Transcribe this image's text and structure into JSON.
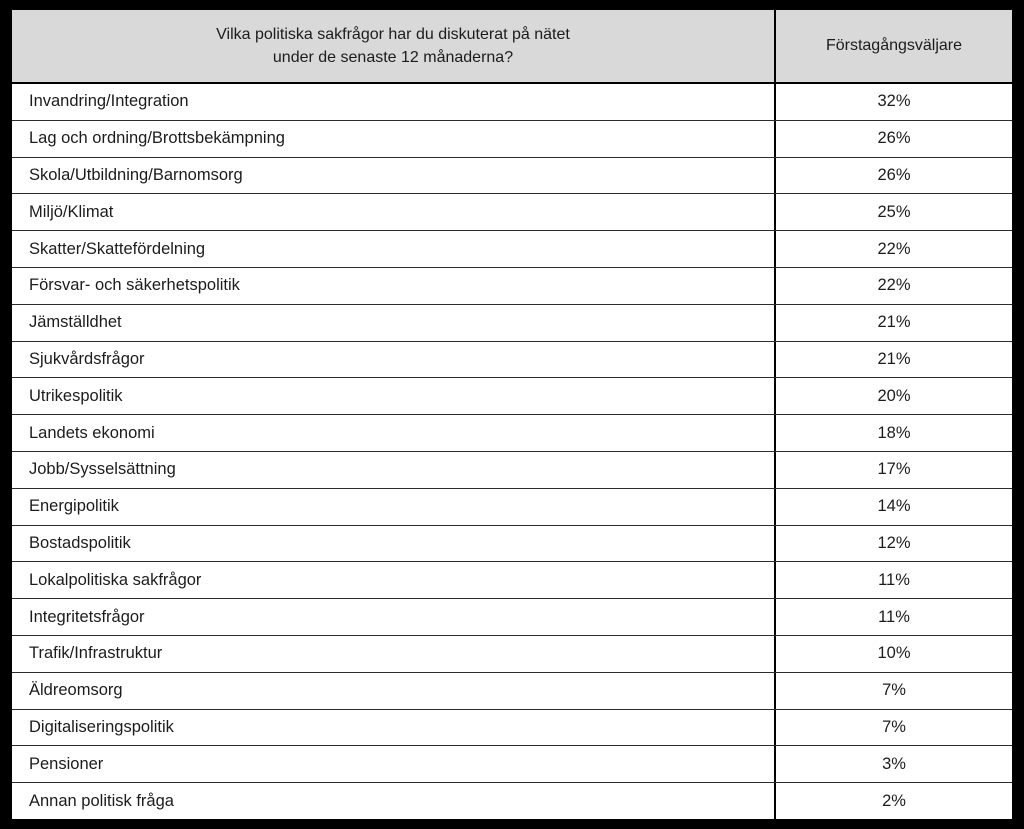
{
  "table": {
    "header": {
      "question_line1": "Vilka politiska sakfrågor har du diskuterat på nätet",
      "question_line2": "under de senaste 12 månaderna?",
      "value_column": "Förstagångsväljare"
    },
    "rows": [
      {
        "label": "Invandring/Integration",
        "value": "32%"
      },
      {
        "label": "Lag och ordning/Brottsbekämpning",
        "value": "26%"
      },
      {
        "label": "Skola/Utbildning/Barnomsorg",
        "value": "26%"
      },
      {
        "label": "Miljö/Klimat",
        "value": "25%"
      },
      {
        "label": "Skatter/Skattefördelning",
        "value": "22%"
      },
      {
        "label": "Försvar- och säkerhetspolitik",
        "value": "22%"
      },
      {
        "label": "Jämställdhet",
        "value": "21%"
      },
      {
        "label": "Sjukvårdsfrågor",
        "value": "21%"
      },
      {
        "label": "Utrikespolitik",
        "value": "20%"
      },
      {
        "label": "Landets ekonomi",
        "value": "18%"
      },
      {
        "label": "Jobb/Sysselsättning",
        "value": "17%"
      },
      {
        "label": "Energipolitik",
        "value": "14%"
      },
      {
        "label": "Bostadspolitik",
        "value": "12%"
      },
      {
        "label": "Lokalpolitiska sakfrågor",
        "value": "11%"
      },
      {
        "label": "Integritetsfrågor",
        "value": "11%"
      },
      {
        "label": "Trafik/Infrastruktur",
        "value": "10%"
      },
      {
        "label": "Äldreomsorg",
        "value": "7%"
      },
      {
        "label": "Digitaliseringspolitik",
        "value": "7%"
      },
      {
        "label": "Pensioner",
        "value": "3%"
      },
      {
        "label": "Annan politisk fråga",
        "value": "2%"
      }
    ],
    "colors": {
      "page_bg": "#000000",
      "header_bg": "#d9d9d9",
      "row_bg": "#ffffff",
      "border": "#000000",
      "text": "#1c1c1c"
    }
  },
  "chart_data": {
    "type": "table",
    "title": "Vilka politiska sakfrågor har du diskuterat på nätet under de senaste 12 månaderna?",
    "columns": [
      "Vilka politiska sakfrågor har du diskuterat på nätet under de senaste 12 månaderna?",
      "Förstagångsväljare"
    ],
    "categories": [
      "Invandring/Integration",
      "Lag och ordning/Brottsbekämpning",
      "Skola/Utbildning/Barnomsorg",
      "Miljö/Klimat",
      "Skatter/Skattefördelning",
      "Försvar- och säkerhetspolitik",
      "Jämställdhet",
      "Sjukvårdsfrågor",
      "Utrikespolitik",
      "Landets ekonomi",
      "Jobb/Sysselsättning",
      "Energipolitik",
      "Bostadspolitik",
      "Lokalpolitiska sakfrågor",
      "Integritetsfrågor",
      "Trafik/Infrastruktur",
      "Äldreomsorg",
      "Digitaliseringspolitik",
      "Pensioner",
      "Annan politisk fråga"
    ],
    "values_percent": [
      32,
      26,
      26,
      25,
      22,
      22,
      21,
      21,
      20,
      18,
      17,
      14,
      12,
      11,
      11,
      10,
      7,
      7,
      3,
      2
    ],
    "value_unit": "%",
    "series_name": "Förstagångsväljare"
  }
}
